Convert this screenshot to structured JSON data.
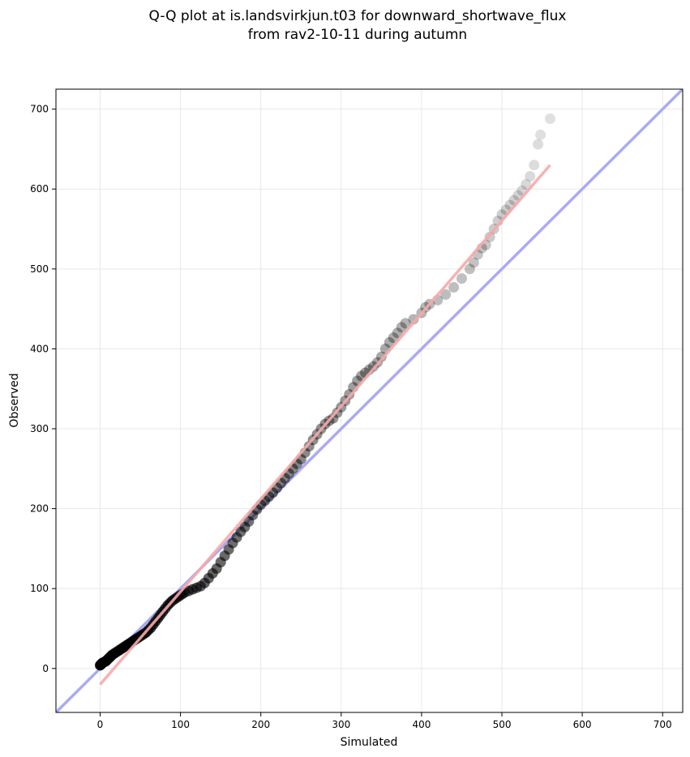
{
  "chart_data": {
    "type": "scatter",
    "title_lines": [
      "Q-Q plot at is.landsvirkjun.t03 for downward_shortwave_flux",
      "from rav2-10-11 during autumn"
    ],
    "xlabel": "Simulated",
    "ylabel": "Observed",
    "xlim": [
      -55,
      725
    ],
    "ylim": [
      -55,
      725
    ],
    "xticks": [
      0,
      100,
      200,
      300,
      400,
      500,
      600,
      700
    ],
    "yticks": [
      0,
      100,
      200,
      300,
      400,
      500,
      600,
      700
    ],
    "grid": true,
    "reference_line": {
      "name": "1:1 line",
      "color": "#aaaaf4",
      "from": [
        -55,
        -55
      ],
      "to": [
        725,
        725
      ]
    },
    "fit_line": {
      "name": "fit",
      "color": "#f7a8a8",
      "from": [
        0,
        -20
      ],
      "to": [
        560,
        630
      ]
    },
    "point_color": "#000000",
    "points": [
      [
        0,
        4
      ],
      [
        1,
        5
      ],
      [
        2,
        6
      ],
      [
        3,
        7
      ],
      [
        5,
        8
      ],
      [
        7,
        9
      ],
      [
        9,
        11
      ],
      [
        11,
        13
      ],
      [
        13,
        15
      ],
      [
        15,
        17
      ],
      [
        18,
        19
      ],
      [
        21,
        21
      ],
      [
        24,
        23
      ],
      [
        27,
        25
      ],
      [
        30,
        27
      ],
      [
        33,
        29
      ],
      [
        36,
        31
      ],
      [
        39,
        33
      ],
      [
        42,
        35
      ],
      [
        45,
        37
      ],
      [
        48,
        39
      ],
      [
        51,
        41
      ],
      [
        54,
        43
      ],
      [
        57,
        45
      ],
      [
        60,
        48
      ],
      [
        63,
        51
      ],
      [
        66,
        55
      ],
      [
        69,
        59
      ],
      [
        72,
        63
      ],
      [
        75,
        67
      ],
      [
        78,
        71
      ],
      [
        81,
        75
      ],
      [
        84,
        79
      ],
      [
        87,
        82
      ],
      [
        90,
        85
      ],
      [
        93,
        87
      ],
      [
        96,
        89
      ],
      [
        99,
        91
      ],
      [
        102,
        93
      ],
      [
        105,
        95
      ],
      [
        110,
        97
      ],
      [
        115,
        99
      ],
      [
        120,
        101
      ],
      [
        125,
        103
      ],
      [
        130,
        107
      ],
      [
        135,
        113
      ],
      [
        140,
        119
      ],
      [
        145,
        125
      ],
      [
        150,
        133
      ],
      [
        155,
        141
      ],
      [
        160,
        149
      ],
      [
        165,
        157
      ],
      [
        170,
        164
      ],
      [
        175,
        171
      ],
      [
        180,
        177
      ],
      [
        185,
        184
      ],
      [
        190,
        192
      ],
      [
        195,
        199
      ],
      [
        200,
        205
      ],
      [
        205,
        210
      ],
      [
        210,
        215
      ],
      [
        215,
        220
      ],
      [
        220,
        226
      ],
      [
        225,
        232
      ],
      [
        230,
        238
      ],
      [
        235,
        244
      ],
      [
        240,
        250
      ],
      [
        245,
        256
      ],
      [
        250,
        262
      ],
      [
        255,
        270
      ],
      [
        260,
        278
      ],
      [
        265,
        286
      ],
      [
        270,
        293
      ],
      [
        275,
        300
      ],
      [
        280,
        306
      ],
      [
        285,
        310
      ],
      [
        290,
        313
      ],
      [
        295,
        320
      ],
      [
        300,
        327
      ],
      [
        305,
        335
      ],
      [
        310,
        343
      ],
      [
        315,
        352
      ],
      [
        320,
        360
      ],
      [
        325,
        366
      ],
      [
        330,
        370
      ],
      [
        335,
        374
      ],
      [
        340,
        378
      ],
      [
        345,
        383
      ],
      [
        350,
        390
      ],
      [
        355,
        400
      ],
      [
        360,
        408
      ],
      [
        365,
        414
      ],
      [
        370,
        420
      ],
      [
        375,
        427
      ],
      [
        380,
        432
      ],
      [
        390,
        437
      ],
      [
        400,
        445
      ],
      [
        405,
        452
      ],
      [
        410,
        456
      ],
      [
        420,
        461
      ],
      [
        430,
        468
      ],
      [
        440,
        477
      ],
      [
        450,
        488
      ],
      [
        460,
        500
      ],
      [
        465,
        508
      ],
      [
        470,
        518
      ],
      [
        475,
        526
      ],
      [
        480,
        530
      ],
      [
        485,
        540
      ],
      [
        490,
        550
      ],
      [
        495,
        560
      ],
      [
        500,
        568
      ],
      [
        505,
        574
      ],
      [
        510,
        580
      ],
      [
        515,
        586
      ],
      [
        520,
        592
      ],
      [
        525,
        598
      ],
      [
        530,
        606
      ],
      [
        535,
        616
      ],
      [
        540,
        630
      ],
      [
        545,
        656
      ],
      [
        548,
        668
      ],
      [
        560,
        688
      ]
    ]
  }
}
